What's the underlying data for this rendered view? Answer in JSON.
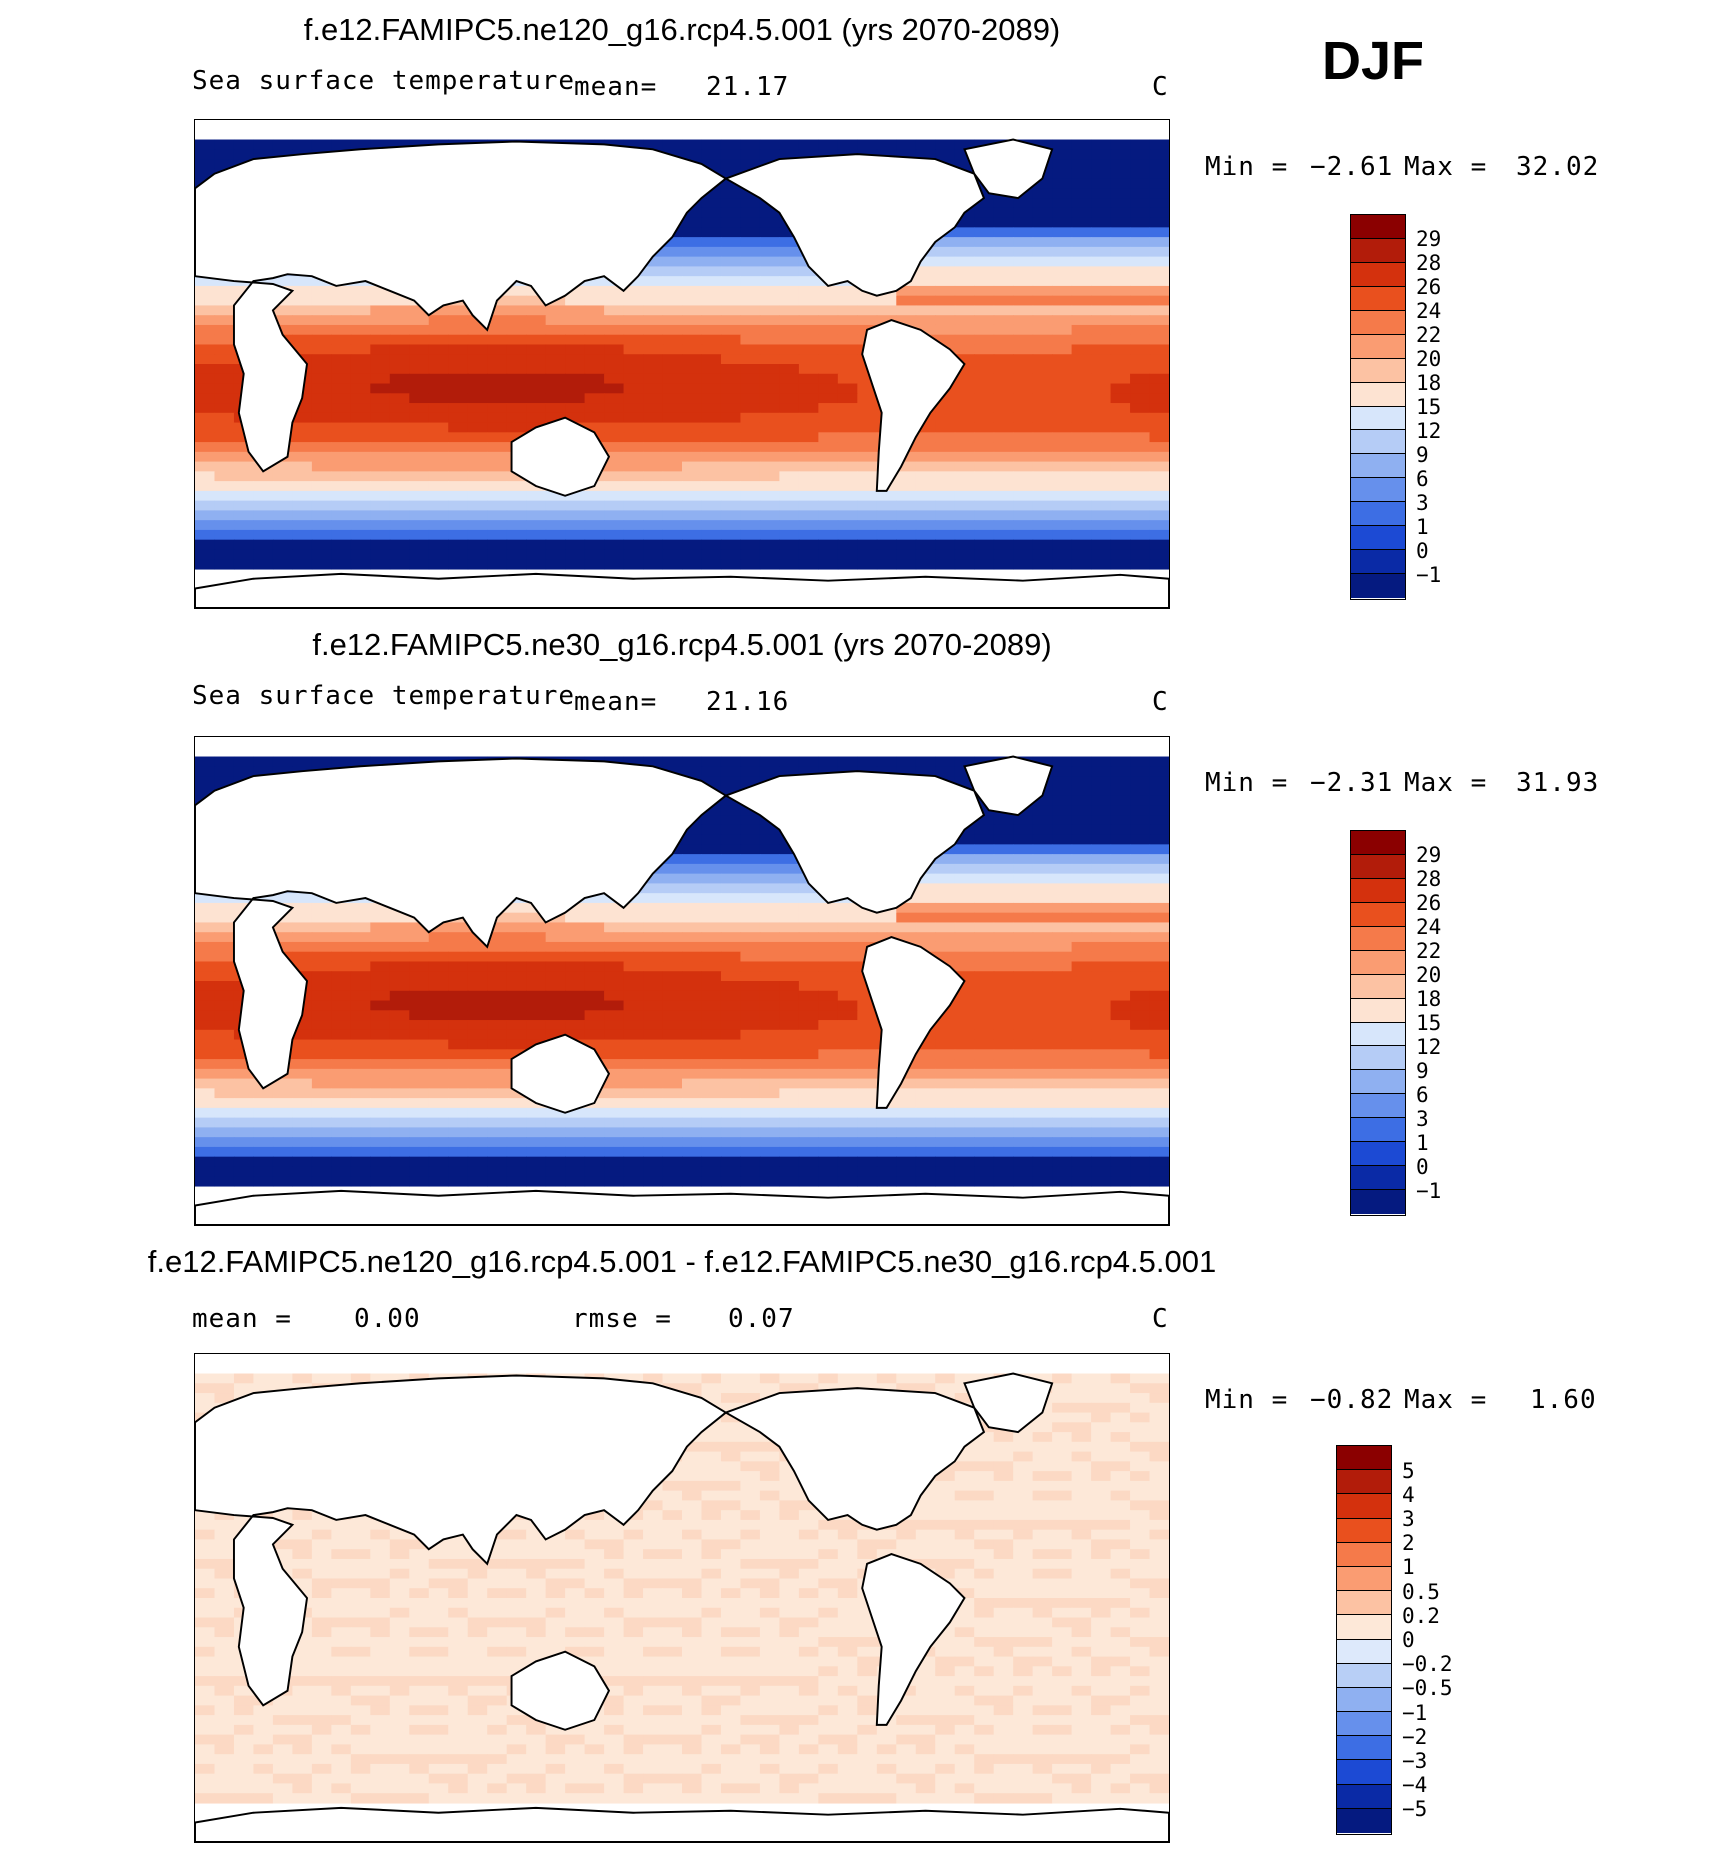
{
  "season": "DJF",
  "panels": [
    {
      "title": "f.e12.FAMIPC5.ne120_g16.rcp4.5.001 (yrs 2070-2089)",
      "var_label": "Sea surface temperature",
      "stat_label": "mean=",
      "stat_value": "21.17",
      "units": "C",
      "min_label": "Min =",
      "min_value": "−2.61",
      "max_label": "Max =",
      "max_value": "32.02"
    },
    {
      "title": "f.e12.FAMIPC5.ne30_g16.rcp4.5.001 (yrs 2070-2089)",
      "var_label": "Sea surface temperature",
      "stat_label": "mean=",
      "stat_value": "21.16",
      "units": "C",
      "min_label": "Min =",
      "min_value": "−2.31",
      "max_label": "Max =",
      "max_value": "31.93"
    },
    {
      "title": "f.e12.FAMIPC5.ne120_g16.rcp4.5.001 - f.e12.FAMIPC5.ne30_g16.rcp4.5.001",
      "stat_label": "mean =",
      "stat_value": "0.00",
      "rmse_label": "rmse =",
      "rmse_value": "0.07",
      "units": "C",
      "min_label": "Min =",
      "min_value": "−0.82",
      "max_label": "Max =",
      "max_value": "1.60"
    }
  ],
  "chart_data": [
    {
      "type": "heatmap",
      "title": "f.e12.FAMIPC5.ne120_g16.rcp4.5.001 (yrs 2070-2089)",
      "variable": "Sea surface temperature",
      "units": "C",
      "mean": 21.17,
      "min": -2.61,
      "max": 32.02,
      "colorbar_levels": [
        "29",
        "28",
        "26",
        "24",
        "22",
        "20",
        "18",
        "15",
        "12",
        "9",
        "6",
        "3",
        "1",
        "0",
        "−1"
      ],
      "colorbar_colors": [
        "#8b0000",
        "#b21c0a",
        "#d4310d",
        "#e9501e",
        "#f57a4a",
        "#fa9c72",
        "#fcc2a3",
        "#fde3d2",
        "#d7e6fb",
        "#b5ccf6",
        "#8fb0f1",
        "#6690ec",
        "#3d6ee4",
        "#1c4ad4",
        "#0a2aa6",
        "#051a80"
      ]
    },
    {
      "type": "heatmap",
      "title": "f.e12.FAMIPC5.ne30_g16.rcp4.5.001 (yrs 2070-2089)",
      "variable": "Sea surface temperature",
      "units": "C",
      "mean": 21.16,
      "min": -2.31,
      "max": 31.93,
      "colorbar_levels": [
        "29",
        "28",
        "26",
        "24",
        "22",
        "20",
        "18",
        "15",
        "12",
        "9",
        "6",
        "3",
        "1",
        "0",
        "−1"
      ],
      "colorbar_colors": [
        "#8b0000",
        "#b21c0a",
        "#d4310d",
        "#e9501e",
        "#f57a4a",
        "#fa9c72",
        "#fcc2a3",
        "#fde3d2",
        "#d7e6fb",
        "#b5ccf6",
        "#8fb0f1",
        "#6690ec",
        "#3d6ee4",
        "#1c4ad4",
        "#0a2aa6",
        "#051a80"
      ]
    },
    {
      "type": "heatmap",
      "title": "f.e12.FAMIPC5.ne120_g16.rcp4.5.001 - f.e12.FAMIPC5.ne30_g16.rcp4.5.001",
      "units": "C",
      "mean": 0.0,
      "rmse": 0.07,
      "min": -0.82,
      "max": 1.6,
      "colorbar_levels": [
        "5",
        "4",
        "3",
        "2",
        "1",
        "0.5",
        "0.2",
        "0",
        "−0.2",
        "−0.5",
        "−1",
        "−2",
        "−3",
        "−4",
        "−5"
      ],
      "colorbar_colors": [
        "#8b0000",
        "#b21c0a",
        "#d4310d",
        "#e9501e",
        "#f57a4a",
        "#fa9c72",
        "#fcc2a3",
        "#fde8d8",
        "#dde9fb",
        "#b8cff6",
        "#8fb0f1",
        "#6690ec",
        "#3d6ee4",
        "#1c4ad4",
        "#0a2aa6",
        "#051a80"
      ]
    }
  ]
}
